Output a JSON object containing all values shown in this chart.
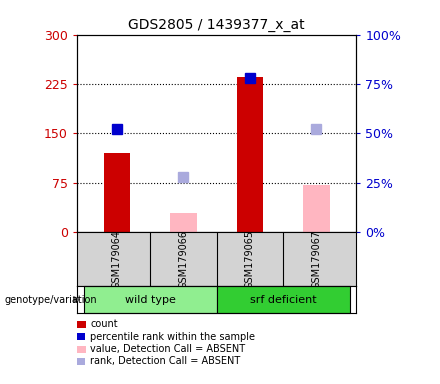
{
  "title": "GDS2805 / 1439377_x_at",
  "samples": [
    "GSM179064",
    "GSM179066",
    "GSM179065",
    "GSM179067"
  ],
  "groups": [
    {
      "name": "wild type",
      "color": "#90EE90",
      "indices": [
        0,
        1
      ]
    },
    {
      "name": "srf deficient",
      "color": "#32CD32",
      "indices": [
        2,
        3
      ]
    }
  ],
  "count_values": [
    120,
    null,
    235,
    null
  ],
  "count_absent_values": [
    null,
    30,
    null,
    72
  ],
  "rank_values": [
    52,
    null,
    78,
    null
  ],
  "rank_absent_values": [
    null,
    28,
    null,
    52
  ],
  "left_ylim": [
    0,
    300
  ],
  "right_ylim": [
    0,
    100
  ],
  "left_yticks": [
    0,
    75,
    150,
    225,
    300
  ],
  "right_yticks": [
    0,
    25,
    50,
    75,
    100
  ],
  "left_yticklabels": [
    "0",
    "75",
    "150",
    "225",
    "300"
  ],
  "right_yticklabels": [
    "0%",
    "25%",
    "50%",
    "75%",
    "100%"
  ],
  "count_color": "#CC0000",
  "count_absent_color": "#FFB6C1",
  "rank_color": "#0000CD",
  "rank_absent_color": "#AAAADD",
  "bg_color": "#D3D3D3",
  "plot_bg": "#FFFFFF",
  "legend_items": [
    {
      "label": "count",
      "color": "#CC0000",
      "shape": "rect"
    },
    {
      "label": "percentile rank within the sample",
      "color": "#0000CD",
      "shape": "square"
    },
    {
      "label": "value, Detection Call = ABSENT",
      "color": "#FFB6C1",
      "shape": "rect"
    },
    {
      "label": "rank, Detection Call = ABSENT",
      "color": "#AAAADD",
      "shape": "square"
    }
  ]
}
